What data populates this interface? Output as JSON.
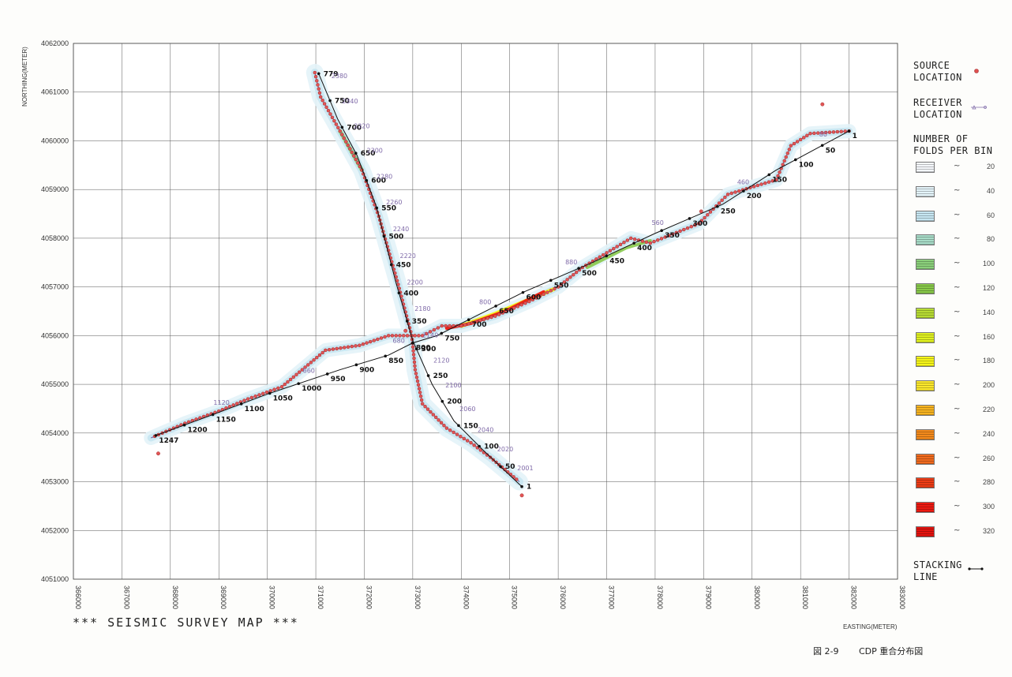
{
  "map": {
    "title": "*** SEISMIC SURVEY MAP   ***",
    "xlabel": "EASTING(METER)",
    "ylabel": "NORTHING(METER)",
    "x_ticks": [
      "366000",
      "367000",
      "368000",
      "369000",
      "370000",
      "371000",
      "372000",
      "373000",
      "374000",
      "375000",
      "376000",
      "377000",
      "378000",
      "379000",
      "380000",
      "381000",
      "382000",
      "383000"
    ],
    "y_ticks": [
      "4062000",
      "4061000",
      "4060000",
      "4059000",
      "4058000",
      "4057000",
      "4056000",
      "4055000",
      "4054000",
      "4053000",
      "4052000",
      "4051000"
    ]
  },
  "legend": {
    "source": "SOURCE\nLOCATION",
    "receiver": "RECEIVER\nLOCATION",
    "folds_title": "NUMBER OF\nFOLDS PER BIN",
    "fold_tilde": "~",
    "fold_bins": [
      {
        "value": "20",
        "color": "#f4f7fb"
      },
      {
        "value": "40",
        "color": "#e3f3f8"
      },
      {
        "value": "60",
        "color": "#c6e6f1"
      },
      {
        "value": "80",
        "color": "#a8dcc8"
      },
      {
        "value": "100",
        "color": "#8bd07b"
      },
      {
        "value": "120",
        "color": "#88c94a"
      },
      {
        "value": "140",
        "color": "#b7dc34"
      },
      {
        "value": "160",
        "color": "#dff020"
      },
      {
        "value": "180",
        "color": "#f6f519"
      },
      {
        "value": "200",
        "color": "#fbe72c"
      },
      {
        "value": "220",
        "color": "#f6b320"
      },
      {
        "value": "240",
        "color": "#f38a1c"
      },
      {
        "value": "260",
        "color": "#f06a1d"
      },
      {
        "value": "280",
        "color": "#ec3c16"
      },
      {
        "value": "300",
        "color": "#ec1a12"
      },
      {
        "value": "320",
        "color": "#e3130f"
      }
    ],
    "stacking": "STACKING\nLINE"
  },
  "caption": {
    "fig_no": "図 2-9",
    "text": "CDP 重合分布図"
  },
  "lines": {
    "nw_se": {
      "stacking_labels": [
        "779",
        "750",
        "700",
        "650",
        "600",
        "550",
        "500",
        "450",
        "400",
        "350",
        "300",
        "250",
        "200",
        "150",
        "100",
        "50",
        "1"
      ],
      "receiver_labels": [
        "2380",
        "2340",
        "2320",
        "2300",
        "2280",
        "2260",
        "2240",
        "2220",
        "2200",
        "2180",
        "2140",
        "2120",
        "2100",
        "2060",
        "2040",
        "2020",
        "2001"
      ]
    },
    "ne_sw": {
      "stacking_labels": [
        "1",
        "50",
        "100",
        "150",
        "200",
        "250",
        "300",
        "350",
        "400",
        "450",
        "500",
        "550",
        "600",
        "650",
        "700",
        "750",
        "800",
        "850",
        "900",
        "950",
        "1000",
        "1050",
        "1100",
        "1150",
        "1200",
        "1247"
      ],
      "receiver_labels": [
        "80",
        "460",
        "560",
        "880",
        "800",
        "680",
        "660",
        "1120"
      ]
    }
  }
}
